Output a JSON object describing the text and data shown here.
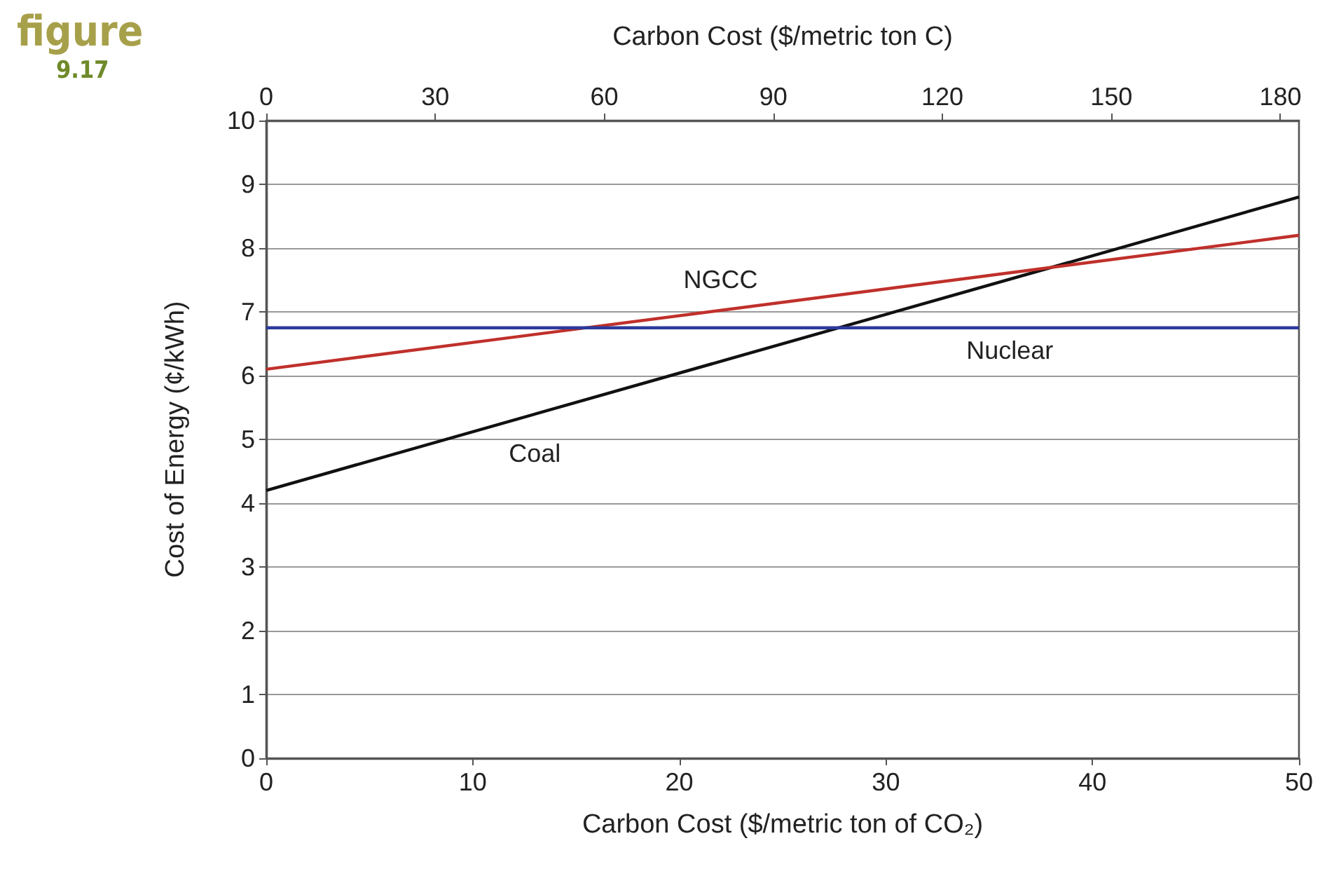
{
  "chart_data": {
    "type": "line",
    "annotations": [
      "figure",
      "9.17"
    ],
    "xlabel": "Carbon Cost ($/metric ton of CO₂)",
    "x2label": "Carbon Cost ($/metric ton C)",
    "ylabel": "Cost of Energy (¢/kWh)",
    "x": [
      0,
      50
    ],
    "series": [
      {
        "name": "Coal",
        "color": "#111111",
        "values": [
          4.2,
          8.8
        ]
      },
      {
        "name": "NGCC",
        "color": "#c0302b",
        "values": [
          6.1,
          8.2
        ]
      },
      {
        "name": "Nuclear",
        "color": "#2b3a9c",
        "values": [
          6.75,
          6.75
        ]
      }
    ],
    "xlim": [
      0,
      50
    ],
    "xticks": [
      0,
      10,
      20,
      30,
      40,
      50
    ],
    "x2lim": [
      0,
      183.3
    ],
    "x2ticks": [
      0,
      30,
      60,
      90,
      120,
      150,
      180
    ],
    "ylim": [
      0,
      10
    ],
    "yticks": [
      0,
      1,
      2,
      3,
      4,
      5,
      6,
      7,
      8,
      9,
      10
    ],
    "grid": "y",
    "line_style": "solid"
  }
}
